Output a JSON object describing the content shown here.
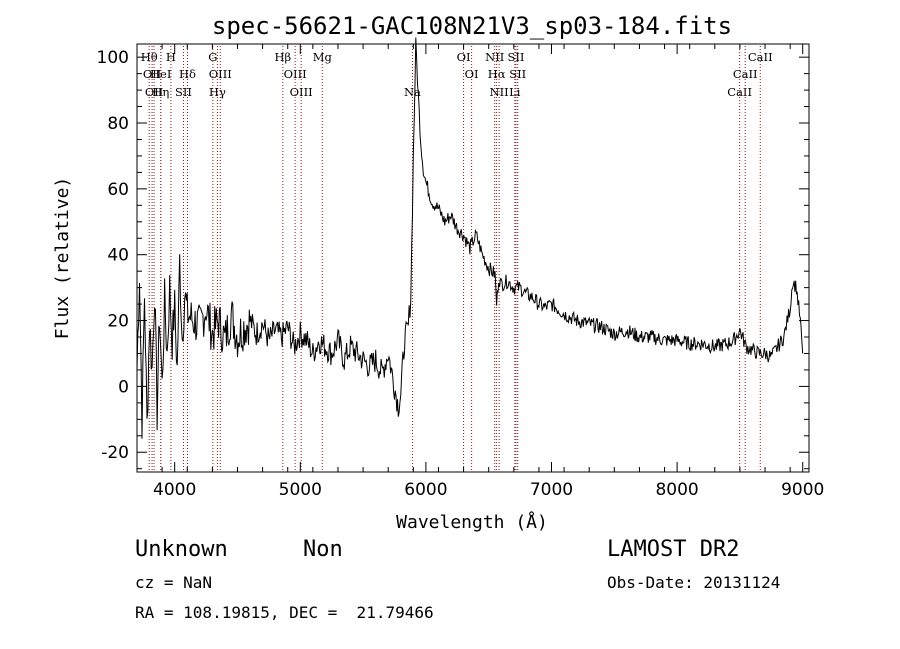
{
  "chart_data": {
    "type": "line",
    "title": "spec-56621-GAC108N21V3_sp03-184.fits",
    "xlabel": "Wavelength (Å)",
    "ylabel": "Flux (relative)",
    "xlim": [
      3700,
      9050
    ],
    "ylim": [
      -26,
      104
    ],
    "x_ticks": [
      4000,
      5000,
      6000,
      7000,
      8000,
      9000
    ],
    "y_ticks": [
      -20,
      0,
      20,
      40,
      60,
      80,
      100
    ],
    "grid": false,
    "legend": "none",
    "line_color": "#000000",
    "marker_color": "#8b1a1a",
    "series": [
      {
        "x": [
          3700,
          3720,
          3740,
          3760,
          3780,
          3800,
          3820,
          3840,
          3860,
          3880,
          3900,
          3920,
          3940,
          3960,
          3980,
          4000,
          4020,
          4040,
          4060,
          4080,
          4100,
          4150,
          4200,
          4250,
          4300,
          4350,
          4400,
          4450,
          4500,
          4550,
          4600,
          4650,
          4700,
          4750,
          4800,
          4850,
          4900,
          4950,
          5000,
          5050,
          5100,
          5150,
          5200,
          5250,
          5300,
          5350,
          5400,
          5450,
          5500,
          5550,
          5600,
          5650,
          5700,
          5750,
          5780,
          5800,
          5830,
          5860,
          5880,
          5900,
          5920,
          5940,
          5960,
          5980,
          6000,
          6050,
          6100,
          6150,
          6200,
          6250,
          6300,
          6350,
          6400,
          6450,
          6500,
          6550,
          6563,
          6580,
          6600,
          6650,
          6700,
          6750,
          6800,
          6850,
          6900,
          6950,
          7000,
          7100,
          7200,
          7300,
          7400,
          7500,
          7600,
          7700,
          7800,
          7900,
          8000,
          8100,
          8200,
          8300,
          8400,
          8450,
          8500,
          8550,
          8600,
          8650,
          8700,
          8750,
          8800,
          8850,
          8900,
          8920,
          8950,
          8980,
          9000
        ],
        "y": [
          5,
          35,
          -10,
          28,
          -12,
          20,
          5,
          30,
          -8,
          22,
          0,
          26,
          10,
          30,
          14,
          24,
          5,
          38,
          15,
          28,
          22,
          20,
          18,
          24,
          16,
          20,
          14,
          22,
          15,
          18,
          20,
          16,
          19,
          14,
          17,
          15,
          18,
          12,
          16,
          14,
          10,
          14,
          12,
          10,
          14,
          8,
          12,
          10,
          8,
          6,
          8,
          4,
          10,
          0,
          -6,
          -2,
          14,
          18,
          28,
          70,
          104,
          88,
          74,
          66,
          62,
          56,
          54,
          50,
          52,
          48,
          46,
          42,
          46,
          40,
          36,
          34,
          25,
          33,
          31,
          32,
          30,
          30,
          28,
          27,
          25,
          24,
          25,
          22,
          20,
          19,
          18,
          16,
          17,
          15,
          15,
          14,
          14,
          13,
          13,
          12,
          13,
          14,
          17,
          12,
          11,
          10,
          10,
          9,
          12,
          15,
          24,
          32,
          30,
          20,
          10
        ]
      }
    ],
    "spectral_lines": [
      {
        "x": 3797,
        "label": "Hθ",
        "row": 0
      },
      {
        "x": 3820,
        "label": "OII",
        "row": 1
      },
      {
        "x": 3836,
        "label": "OII",
        "row": 2
      },
      {
        "x": 3889,
        "label": "HeI",
        "row": 1
      },
      {
        "x": 3890,
        "label": "Hη",
        "row": 2
      },
      {
        "x": 3970,
        "label": "H",
        "row": 0
      },
      {
        "x": 4102,
        "label": "Hδ",
        "row": 1
      },
      {
        "x": 4070,
        "label": "SII",
        "row": 2
      },
      {
        "x": 4304,
        "label": "G",
        "row": 0
      },
      {
        "x": 4340,
        "label": "Hγ",
        "row": 2
      },
      {
        "x": 4363,
        "label": "OIII",
        "row": 1
      },
      {
        "x": 4861,
        "label": "Hβ",
        "row": 0
      },
      {
        "x": 4959,
        "label": "OIII",
        "row": 1
      },
      {
        "x": 5007,
        "label": "OIII",
        "row": 2
      },
      {
        "x": 5175,
        "label": "Mg",
        "row": 0
      },
      {
        "x": 5893,
        "label": "Na",
        "row": 2
      },
      {
        "x": 6300,
        "label": "OI",
        "row": 0
      },
      {
        "x": 6364,
        "label": "OI",
        "row": 1
      },
      {
        "x": 6548,
        "label": "NII",
        "row": 0
      },
      {
        "x": 6563,
        "label": "Hα",
        "row": 1
      },
      {
        "x": 6583,
        "label": "NII",
        "row": 2
      },
      {
        "x": 6717,
        "label": "SII",
        "row": 0
      },
      {
        "x": 6731,
        "label": "SII",
        "row": 1
      },
      {
        "x": 6708,
        "label": "Li",
        "row": 2
      },
      {
        "x": 8498,
        "label": "CaII",
        "row": 2
      },
      {
        "x": 8542,
        "label": "CaII",
        "row": 1
      },
      {
        "x": 8662,
        "label": "CaII",
        "row": 0
      }
    ]
  },
  "info": {
    "class": "Unknown",
    "subclass": "Non",
    "survey": "LAMOST DR2",
    "cz": "cz = NaN",
    "obs_date": "Obs-Date: 20131124",
    "coords": "RA = 108.19815, DEC =  21.79466"
  }
}
